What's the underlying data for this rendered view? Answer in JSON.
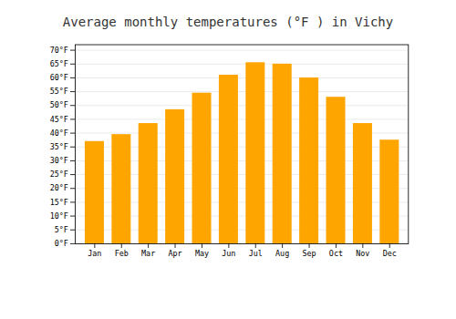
{
  "chart_data": {
    "type": "bar",
    "title": "Average monthly temperatures (°F ) in Vichy",
    "categories": [
      "Jan",
      "Feb",
      "Mar",
      "Apr",
      "May",
      "Jun",
      "Jul",
      "Aug",
      "Sep",
      "Oct",
      "Nov",
      "Dec"
    ],
    "values": [
      37,
      39.5,
      43.5,
      48.5,
      54.5,
      61,
      65.5,
      65,
      60,
      53,
      43.5,
      37.5
    ],
    "color": "#FFA500",
    "ylim": [
      0,
      72
    ],
    "yticks": [
      {
        "value": 0,
        "label": "0°F"
      },
      {
        "value": 5,
        "label": "5°F"
      },
      {
        "value": 10,
        "label": "10°F"
      },
      {
        "value": 15,
        "label": "15°F"
      },
      {
        "value": 20,
        "label": "20°F"
      },
      {
        "value": 25,
        "label": "25°F"
      },
      {
        "value": 30,
        "label": "30°F"
      },
      {
        "value": 35,
        "label": "35°F"
      },
      {
        "value": 40,
        "label": "40°F"
      },
      {
        "value": 45,
        "label": "45°F"
      },
      {
        "value": 50,
        "label": "50°F"
      },
      {
        "value": 55,
        "label": "55°F"
      },
      {
        "value": 60,
        "label": "60°F"
      },
      {
        "value": 65,
        "label": "65°F"
      },
      {
        "value": 70,
        "label": "70°F"
      }
    ],
    "grid": true
  }
}
